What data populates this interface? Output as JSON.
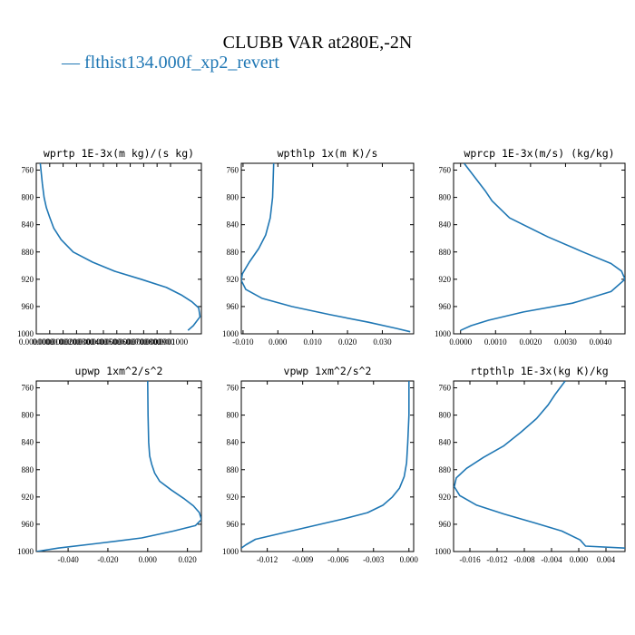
{
  "title": "CLUBB VAR at280E,-2N",
  "legend": {
    "label": "flthist134.000f_xp2_revert",
    "color": "#1f77b4"
  },
  "chart_data": [
    {
      "type": "line",
      "title": "wprtp  1E-3x(m kg)/(s kg)",
      "xlim": [
        0.0,
        0.000123
      ],
      "ylim": [
        1000,
        750
      ],
      "yticks": [
        760,
        800,
        840,
        880,
        920,
        960,
        1000
      ],
      "ytick_labels": [
        "760",
        "800",
        "840",
        "880",
        "920",
        "960",
        "1000"
      ],
      "xticks": [
        0.0,
        1e-05,
        2e-05,
        3e-05,
        4e-05,
        5e-05,
        6e-05,
        7e-05,
        8e-05,
        9e-05,
        0.0001
      ],
      "xtick_labels": [
        "0.0000000",
        "0.0000100",
        "0.0000200",
        "0.0000300",
        "0.0000400",
        "0.0000500",
        "0.0000600",
        "0.0000700",
        "0.0000800",
        "0.0000900",
        "0.0001000"
      ],
      "series": [
        {
          "x": [
            3e-06,
            4.5e-06,
            5.8e-06,
            7.5e-06,
            9.8e-06,
            1.3e-05,
            1.85e-05,
            2.75e-05,
            4.2e-05,
            5.8e-05,
            7.8e-05,
            9.7e-05,
            0.000108,
            0.000116,
            0.000121,
            0.000122,
            0.000117,
            0.000113
          ],
          "y": [
            750,
            780,
            800,
            815,
            828,
            845,
            862,
            880,
            895,
            908,
            920,
            932,
            943,
            953,
            962,
            975,
            988,
            995
          ]
        }
      ]
    },
    {
      "type": "line",
      "title": "wpthlp  1x(m K)/s",
      "xlim": [
        -0.0105,
        0.039
      ],
      "ylim": [
        1000,
        750
      ],
      "yticks": [
        760,
        800,
        840,
        880,
        920,
        960,
        1000
      ],
      "ytick_labels": [
        "760",
        "800",
        "840",
        "880",
        "920",
        "960",
        "1000"
      ],
      "xticks": [
        -0.01,
        0.0,
        0.01,
        0.02,
        0.03
      ],
      "xtick_labels": [
        "-0.010",
        "0.000",
        "0.010",
        "0.020",
        "0.030"
      ],
      "series": [
        {
          "x": [
            -0.0012,
            -0.0015,
            -0.0022,
            -0.0035,
            -0.0055,
            -0.0082,
            -0.0102,
            -0.0105,
            -0.0092,
            -0.0045,
            0.004,
            0.015,
            0.026,
            0.034,
            0.038
          ],
          "y": [
            750,
            800,
            830,
            855,
            875,
            895,
            912,
            922,
            935,
            948,
            960,
            972,
            983,
            992,
            997
          ]
        }
      ]
    },
    {
      "type": "line",
      "title": "wprcp  1E-3x(m/s) (kg/kg)",
      "xlim": [
        -0.0002,
        0.0047
      ],
      "ylim": [
        1000,
        750
      ],
      "yticks": [
        760,
        800,
        840,
        880,
        920,
        960,
        1000
      ],
      "ytick_labels": [
        "760",
        "800",
        "840",
        "880",
        "920",
        "960",
        "1000"
      ],
      "xticks": [
        0.0,
        0.001,
        0.002,
        0.003,
        0.004
      ],
      "xtick_labels": [
        "0.0000",
        "0.0010",
        "0.0020",
        "0.0030",
        "0.0040"
      ],
      "series": [
        {
          "x": [
            0.0001,
            0.0004,
            0.0007,
            0.0009,
            0.0014,
            0.0025,
            0.0035,
            0.0043,
            0.0046,
            0.0047,
            0.0043,
            0.0032,
            0.0018,
            0.0008,
            0.0003,
            0.0
          ],
          "y": [
            750,
            770,
            790,
            805,
            830,
            858,
            880,
            897,
            908,
            920,
            938,
            955,
            968,
            980,
            988,
            995
          ]
        }
      ]
    },
    {
      "type": "line",
      "title": "upwp  1xm^2/s^2",
      "xlim": [
        -0.056,
        0.027
      ],
      "ylim": [
        1000,
        750
      ],
      "yticks": [
        760,
        800,
        840,
        880,
        920,
        960,
        1000
      ],
      "ytick_labels": [
        "760",
        "800",
        "840",
        "880",
        "920",
        "960",
        "1000"
      ],
      "xticks": [
        -0.04,
        -0.02,
        0.0,
        0.02
      ],
      "xtick_labels": [
        "-0.040",
        "-0.020",
        "0.000",
        "0.020"
      ],
      "series": [
        {
          "x": [
            0.0,
            0.0002,
            0.0005,
            0.001,
            0.002,
            0.0035,
            0.006,
            0.012,
            0.018,
            0.023,
            0.026,
            0.027,
            0.024,
            0.013,
            -0.003,
            -0.025,
            -0.045,
            -0.056
          ],
          "y": [
            750,
            800,
            840,
            860,
            872,
            885,
            897,
            910,
            922,
            933,
            943,
            953,
            962,
            970,
            980,
            988,
            995,
            1000
          ]
        }
      ]
    },
    {
      "type": "line",
      "title": "vpwp  1xm^2/s^2",
      "xlim": [
        -0.0142,
        0.0004
      ],
      "ylim": [
        1000,
        750
      ],
      "yticks": [
        760,
        800,
        840,
        880,
        920,
        960,
        1000
      ],
      "ytick_labels": [
        "760",
        "800",
        "840",
        "880",
        "920",
        "960",
        "1000"
      ],
      "xticks": [
        -0.012,
        -0.009,
        -0.006,
        -0.003,
        0.0
      ],
      "xtick_labels": [
        "-0.012",
        "-0.009",
        "-0.006",
        "-0.003",
        "0.000"
      ],
      "series": [
        {
          "x": [
            0.0,
            0.0,
            -0.0001,
            -0.0002,
            -0.0004,
            -0.0008,
            -0.0014,
            -0.0022,
            -0.0035,
            -0.0055,
            -0.008,
            -0.0105,
            -0.013,
            -0.0138,
            -0.0142
          ],
          "y": [
            750,
            800,
            840,
            870,
            890,
            907,
            920,
            932,
            943,
            952,
            962,
            972,
            982,
            990,
            995
          ]
        }
      ]
    },
    {
      "type": "line",
      "title": "rtpthlp  1E-3x(kg K)/kg",
      "xlim": [
        -0.0184,
        0.0068
      ],
      "ylim": [
        1000,
        750
      ],
      "yticks": [
        760,
        800,
        840,
        880,
        920,
        960,
        1000
      ],
      "ytick_labels": [
        "760",
        "800",
        "840",
        "880",
        "920",
        "960",
        "1000"
      ],
      "xticks": [
        -0.016,
        -0.012,
        -0.008,
        -0.004,
        0.0,
        0.004
      ],
      "xtick_labels": [
        "-0.016",
        "-0.012",
        "-0.008",
        "-0.004",
        "0.000",
        "0.004"
      ],
      "series": [
        {
          "x": [
            -0.002,
            -0.0035,
            -0.0045,
            -0.0062,
            -0.0085,
            -0.011,
            -0.014,
            -0.0165,
            -0.018,
            -0.0183,
            -0.0175,
            -0.015,
            -0.011,
            -0.0065,
            -0.0025,
            0.0002,
            0.001,
            0.0068
          ],
          "y": [
            750,
            770,
            785,
            805,
            825,
            845,
            862,
            878,
            892,
            905,
            918,
            932,
            945,
            958,
            970,
            983,
            992,
            995
          ]
        }
      ]
    }
  ]
}
